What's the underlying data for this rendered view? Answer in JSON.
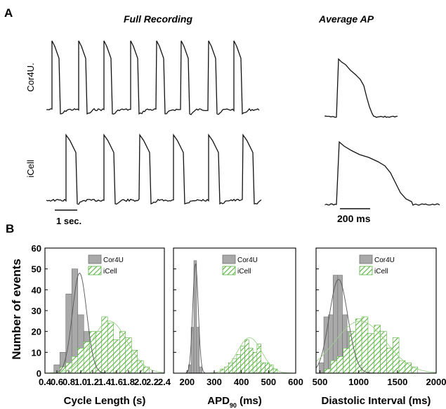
{
  "panel_a": {
    "label": "A",
    "col_full": "Full Recording",
    "col_avg": "Average AP",
    "row1": "Cor4U.",
    "row2": "iCell",
    "scale_full": "1 sec.",
    "scale_avg": "200 ms"
  },
  "panel_b": {
    "label": "B",
    "ylabel": "Number of events"
  },
  "colors": {
    "cor4u_fill": "#a9a9a9",
    "icell_hatch": "#55b13c",
    "icell_fit": "#9ed28c",
    "trace": "#111111"
  },
  "chart_data": [
    {
      "type": "bar",
      "id": "cycle",
      "xlabel": "Cycle Length (s)",
      "ylabel": "Number of events",
      "xlim": [
        0.4,
        2.4
      ],
      "ylim": [
        0,
        60
      ],
      "xticks": [
        "0.4",
        "0.6",
        "0.8",
        "1.0",
        "1.2",
        "1.4",
        "1.6",
        "1.8",
        "2.0",
        "2.2",
        "2.4"
      ],
      "yticks": [
        "0",
        "10",
        "20",
        "30",
        "40",
        "50",
        "60"
      ],
      "legend": [
        "Cor4U",
        "iCell"
      ],
      "legend_position": "top-center",
      "series": [
        {
          "name": "Cor4U",
          "bin_width": 0.1,
          "bins": [
            0.6,
            0.7,
            0.8,
            0.9,
            1.0,
            1.1,
            1.2
          ],
          "values": [
            4,
            10,
            38,
            50,
            28,
            20,
            4
          ],
          "fit": {
            "mu": 0.98,
            "sigma": 0.12,
            "amp": 48
          }
        },
        {
          "name": "iCell",
          "bin_width": 0.1,
          "bins": [
            0.7,
            0.8,
            0.9,
            1.0,
            1.1,
            1.2,
            1.3,
            1.4,
            1.5,
            1.6,
            1.7,
            1.8,
            1.9,
            2.0,
            2.1
          ],
          "values": [
            3,
            5,
            8,
            12,
            15,
            20,
            20,
            27,
            24,
            16,
            20,
            17,
            11,
            6,
            3
          ],
          "fit": {
            "mu": 1.48,
            "sigma": 0.3,
            "amp": 25
          }
        }
      ]
    },
    {
      "type": "bar",
      "id": "apd",
      "xlabel": "APD",
      "xlabel_sub": "90",
      "xlabel_unit": " (ms)",
      "xlim": [
        150,
        600
      ],
      "ylim": [
        0,
        60
      ],
      "xticks": [
        "200",
        "300",
        "400",
        "500",
        "600"
      ],
      "legend": [
        "Cor4U",
        "iCell"
      ],
      "legend_position": "top-right",
      "series": [
        {
          "name": "Cor4U",
          "bin_width": 10,
          "bins": [
            210,
            220,
            230,
            240,
            250
          ],
          "values": [
            4,
            22,
            54,
            22,
            3
          ],
          "fit": {
            "mu": 231,
            "sigma": 10,
            "amp": 53
          }
        },
        {
          "name": "iCell",
          "bin_width": 15,
          "bins": [
            330,
            345,
            360,
            375,
            390,
            405,
            420,
            435,
            450,
            465,
            480,
            495,
            510,
            525
          ],
          "values": [
            2,
            3,
            5,
            7,
            9,
            13,
            16,
            12,
            10,
            14,
            5,
            5,
            4,
            2
          ],
          "fit": {
            "mu": 430,
            "sigma": 45,
            "amp": 17
          }
        }
      ]
    },
    {
      "type": "bar",
      "id": "diastolic",
      "xlabel": "Diastolic Interval (ms)",
      "xlim": [
        450,
        2000
      ],
      "ylim": [
        0,
        60
      ],
      "xticks": [
        "500",
        "1000",
        "1500",
        "2000"
      ],
      "legend": [
        "Cor4U",
        "iCell"
      ],
      "legend_position": "top-center",
      "series": [
        {
          "name": "Cor4U",
          "bin_width": 60,
          "bins": [
            520,
            580,
            640,
            700,
            760,
            820,
            880,
            940
          ],
          "values": [
            5,
            27,
            28,
            47,
            47,
            28,
            20,
            6
          ],
          "fit": {
            "mu": 740,
            "sigma": 120,
            "amp": 45
          }
        },
        {
          "name": "iCell",
          "bin_width": 80,
          "bins": [
            600,
            680,
            760,
            840,
            920,
            1000,
            1080,
            1160,
            1240,
            1320,
            1400,
            1480,
            1560,
            1640,
            1720
          ],
          "values": [
            2,
            6,
            8,
            12,
            20,
            26,
            27,
            19,
            23,
            20,
            12,
            17,
            6,
            5,
            3
          ],
          "fit": {
            "mu": 1020,
            "sigma": 330,
            "amp": 25
          }
        }
      ]
    }
  ]
}
